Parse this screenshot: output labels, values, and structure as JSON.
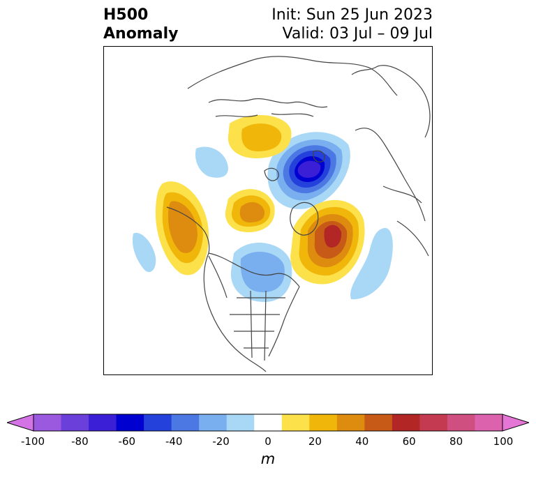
{
  "title": {
    "left_line1": "H500",
    "left_line2": "Anomaly",
    "right_line1": "Init: Sun 25 Jun 2023",
    "right_line2": "Valid: 03 Jul – 09 Jul"
  },
  "map": {
    "projection": "north-polar-stereographic",
    "region": "Northern Hemisphere / North America",
    "anomalies": [
      {
        "name": "trough-siberia-pole",
        "sign": "negative",
        "peak_m": -70
      },
      {
        "name": "ridge-north-atlantic-greenland",
        "sign": "positive",
        "peak_m": 60
      },
      {
        "name": "ridge-north-pacific",
        "sign": "positive",
        "peak_m": 40
      },
      {
        "name": "ridge-arctic-canada",
        "sign": "positive",
        "peak_m": 30
      },
      {
        "name": "ridge-east-asia",
        "sign": "positive",
        "peak_m": 20
      },
      {
        "name": "trough-hudson-bay-eastern-canada",
        "sign": "negative",
        "peak_m": -30
      },
      {
        "name": "trough-east-atlantic",
        "sign": "negative",
        "peak_m": -20
      },
      {
        "name": "trough-east-pacific",
        "sign": "negative",
        "peak_m": -20
      },
      {
        "name": "trough-asia",
        "sign": "negative",
        "peak_m": -20
      }
    ]
  },
  "colorbar": {
    "unit": "m",
    "tick_labels": [
      "-100",
      "-80",
      "-60",
      "-40",
      "-20",
      "0",
      "20",
      "40",
      "60",
      "80",
      "100"
    ],
    "extend": "both",
    "colors": [
      "#d473e6",
      "#9b59e0",
      "#6b3fd9",
      "#3b1fd6",
      "#0000d0",
      "#2441dc",
      "#4c78e4",
      "#79aeef",
      "#a9d8f7",
      "#ffffff",
      "#fce14a",
      "#f0b60a",
      "#de8c10",
      "#c85a18",
      "#b22626",
      "#c43a50",
      "#cf4f80",
      "#dc62ad",
      "#e476d6"
    ]
  }
}
